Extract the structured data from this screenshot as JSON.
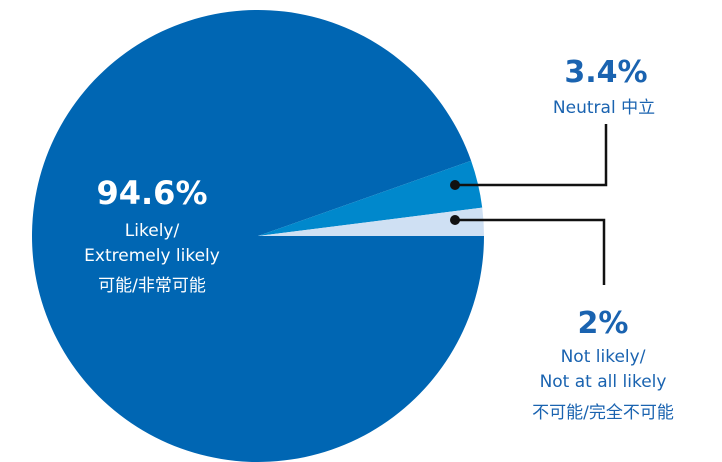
{
  "chart_data": {
    "type": "pie",
    "title": "",
    "slices": [
      {
        "value": 94.6,
        "value_label": "94.6%",
        "label_lines": [
          "Likely/",
          "Extremely likely",
          "可能/非常可能"
        ],
        "color": "#0066b3"
      },
      {
        "value": 3.4,
        "value_label": "3.4%",
        "label_lines": [
          "Neutral 中立"
        ],
        "color": "#0088cc"
      },
      {
        "value": 2,
        "value_label": "2%",
        "label_lines": [
          "Not likely/",
          "Not at all likely",
          "不可能/完全不可能"
        ],
        "color": "#cfe0f3"
      }
    ],
    "value_color": "#ffffff",
    "label_color_inside": "#ffffff",
    "label_color_outside": "#1a63b0",
    "value_color_outside": "#1a63b0",
    "leader_color": "#111111"
  }
}
